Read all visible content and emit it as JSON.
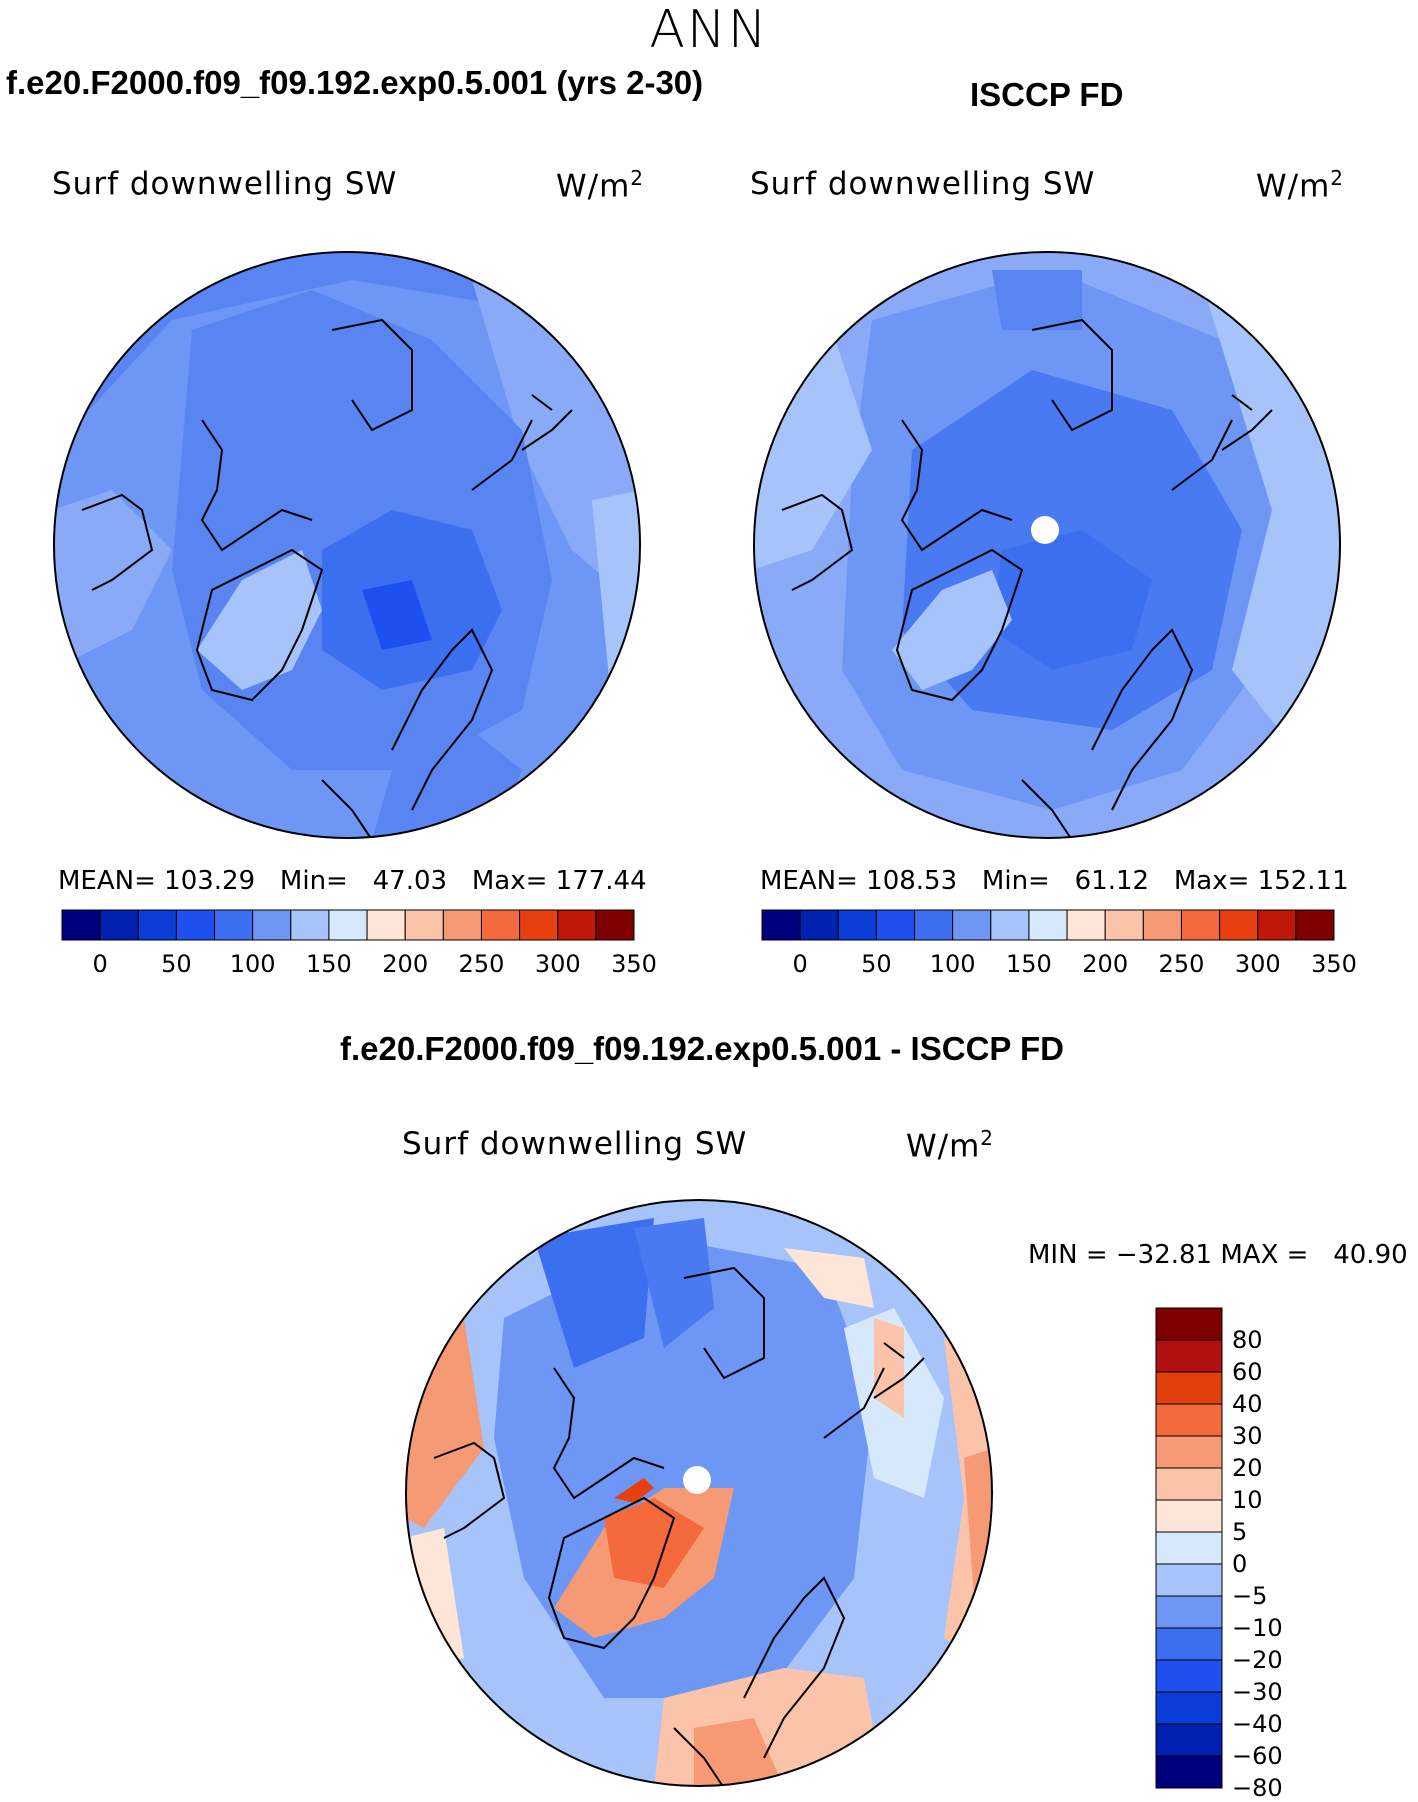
{
  "season": "ANN",
  "panels": [
    {
      "title": "f.e20.F2000.f09_f09.192.exp0.5.001 (yrs 2-30)",
      "variable": "Surf downwelling SW",
      "units_base": "W/m",
      "units_exp": "2",
      "stats": "MEAN= 103.29   Min=   47.03   Max= 177.44"
    },
    {
      "title": "ISCCP FD",
      "variable": "Surf downwelling SW",
      "units_base": "W/m",
      "units_exp": "2",
      "stats": "MEAN= 108.53   Min=   61.12   Max= 152.11"
    }
  ],
  "diff": {
    "title": "f.e20.F2000.f09_f09.192.exp0.5.001 - ISCCP FD",
    "variable": "Surf downwelling SW",
    "units_base": "W/m",
    "units_exp": "2",
    "stats": "MIN = −32.81 MAX =   40.90"
  },
  "colorbar_h": {
    "colors": [
      "#00007f",
      "#0020b0",
      "#0a3cd6",
      "#1e50f0",
      "#3c6ef0",
      "#6e96f5",
      "#a6c4fa",
      "#d6e8fc",
      "#fde6d8",
      "#fbc4aa",
      "#f59a74",
      "#f46a3c",
      "#e84010",
      "#c01808",
      "#7f0000"
    ],
    "ticks": [
      "0",
      "50",
      "100",
      "150",
      "200",
      "250",
      "300",
      "350"
    ]
  },
  "colorbar_v": {
    "colors": [
      "#7f0000",
      "#b01010",
      "#e0400c",
      "#f46a3c",
      "#f59a74",
      "#fbc4aa",
      "#fde6d8",
      "#d6e8fc",
      "#a6c4fa",
      "#6e96f5",
      "#3c6ef0",
      "#1e50f0",
      "#0a3cd6",
      "#0020b0",
      "#00007f"
    ],
    "ticks": [
      "80",
      "60",
      "40",
      "30",
      "20",
      "10",
      "5",
      "0",
      "−5",
      "−10",
      "−20",
      "−30",
      "−40",
      "−60",
      "−80"
    ]
  }
}
